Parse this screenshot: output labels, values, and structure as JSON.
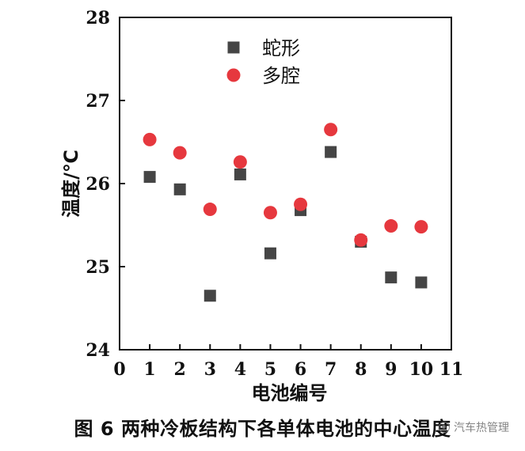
{
  "chart_data": {
    "type": "scatter",
    "title": "",
    "xlabel": "电池编号",
    "ylabel": "温度/℃",
    "xlim": [
      0,
      11
    ],
    "ylim": [
      24,
      28
    ],
    "xticks": [
      0,
      1,
      2,
      3,
      4,
      5,
      6,
      7,
      8,
      9,
      10,
      11
    ],
    "yticks": [
      24,
      25,
      26,
      27,
      28
    ],
    "grid": false,
    "legend_position": "top-center",
    "series": [
      {
        "name": "蛇形",
        "marker": "square",
        "color": "#454545",
        "x": [
          1,
          2,
          3,
          4,
          5,
          6,
          7,
          8,
          9,
          10
        ],
        "y": [
          26.08,
          25.93,
          24.65,
          26.11,
          25.16,
          25.68,
          26.38,
          25.3,
          24.87,
          24.81
        ]
      },
      {
        "name": "多腔",
        "marker": "circle",
        "color": "#e6383e",
        "x": [
          1,
          2,
          3,
          4,
          5,
          6,
          7,
          8,
          9,
          10
        ],
        "y": [
          26.53,
          26.37,
          25.69,
          26.26,
          25.65,
          25.75,
          26.65,
          25.32,
          25.49,
          25.48
        ]
      }
    ]
  },
  "caption": "图 6  两种冷板结构下各单体电池的中心温度",
  "watermark": "汽车热管理"
}
